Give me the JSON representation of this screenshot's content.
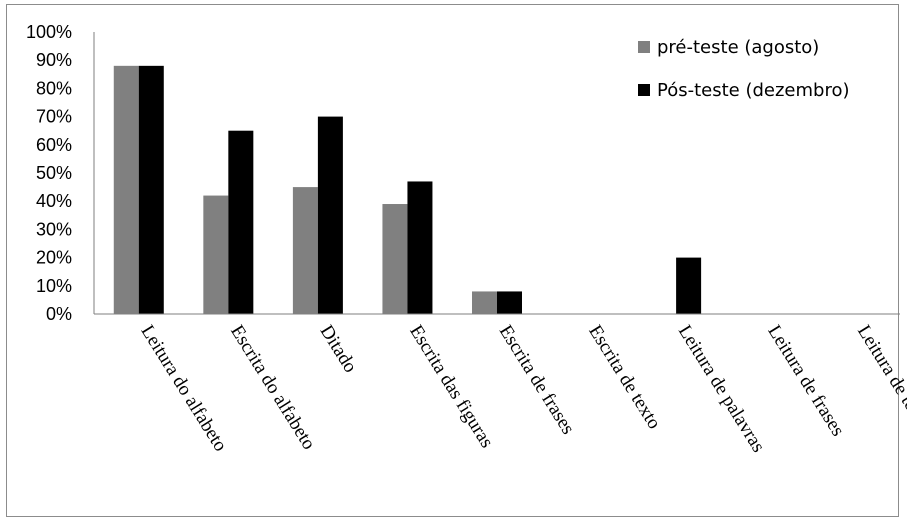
{
  "chart_data": {
    "type": "bar",
    "categories": [
      "Leitura do alfabeto",
      "Escrita do alfabeto",
      "Ditado",
      "Escrita das figuras",
      "Escrita de frases",
      "Escrita de texto",
      "Leitura de palavras",
      "Leitura de frases",
      "Leitura de texto"
    ],
    "series": [
      {
        "name": "pré-teste (agosto)",
        "color": "#808080",
        "values": [
          88,
          42,
          45,
          39,
          8,
          0,
          0,
          0,
          0
        ]
      },
      {
        "name": "Pós-teste (dezembro)",
        "color": "#000000",
        "values": [
          88,
          65,
          70,
          47,
          8,
          0,
          20,
          0,
          0
        ]
      }
    ],
    "y_ticks": [
      "0%",
      "10%",
      "20%",
      "30%",
      "40%",
      "50%",
      "60%",
      "70%",
      "80%",
      "90%",
      "100%"
    ],
    "ylim": [
      0,
      100
    ],
    "grid": false,
    "legend_position": "top-right"
  }
}
